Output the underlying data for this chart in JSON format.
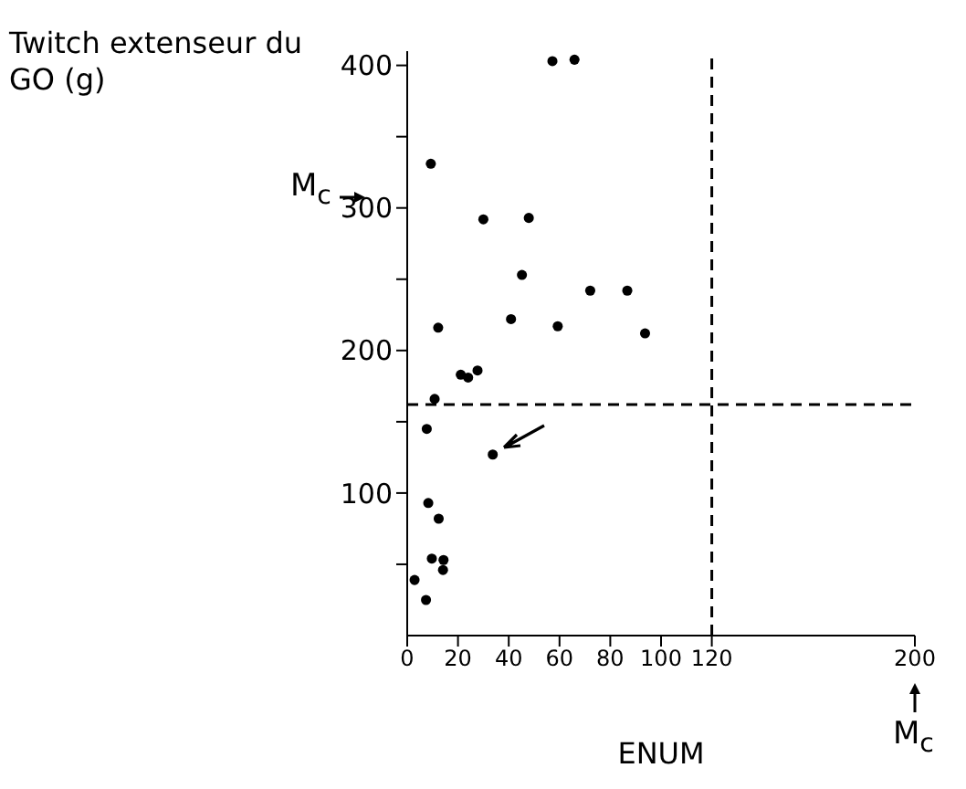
{
  "chart_data": {
    "type": "scatter",
    "ylabel": "Twitch extenseur du GO (g)",
    "xlabel": "ENUM",
    "x": [
      57.2,
      65.9,
      9.3,
      30.0,
      47.9,
      45.2,
      72.1,
      86.7,
      93.7,
      12.2,
      40.9,
      59.3,
      21.1,
      24.0,
      27.7,
      10.8,
      7.7,
      33.7,
      8.3,
      12.4,
      9.7,
      14.3,
      14.1,
      2.9,
      7.4
    ],
    "series": [
      {
        "color": "#000000",
        "values": [
          403,
          404,
          331,
          292,
          293,
          253,
          242,
          242,
          212,
          216,
          222,
          217,
          183,
          181,
          186,
          166,
          145,
          127,
          93,
          82,
          54,
          53,
          46,
          39,
          25
        ]
      }
    ],
    "xlim": [
      0,
      200
    ],
    "xticks": [
      0,
      20,
      40,
      60,
      80,
      100,
      120,
      200
    ],
    "ylim": [
      0,
      410
    ],
    "yticks": [
      {
        "value": 50,
        "label": null
      },
      100,
      {
        "value": 150,
        "label": null
      },
      200,
      {
        "value": 250,
        "label": null
      },
      300,
      {
        "value": 350,
        "label": null
      },
      400
    ],
    "ref_lines": [
      {
        "axis": "x",
        "value": 120,
        "line_style": "dashed"
      },
      {
        "axis": "y",
        "value": 162,
        "line_style": "dashed"
      }
    ],
    "annotations": [
      "M$_{c}$",
      "M$_{c}$"
    ],
    "marker": "circle",
    "grid": false,
    "legend": false
  }
}
